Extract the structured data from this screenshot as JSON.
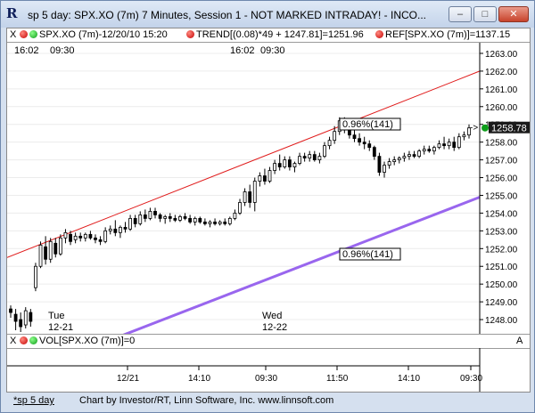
{
  "window": {
    "title": "sp 5 day: SPX.XO (7m) 7 Minutes, Session 1 - NOT MARKED INTRADAY! - INCO...",
    "app_icon": "R",
    "controls": {
      "minimize": "–",
      "maximize": "□",
      "close": "✕"
    }
  },
  "study_bar": {
    "symbol_label": "SPX.XO (7m)-12/20/10 15:20",
    "trend_label": "TREND[(0.08)*49 + 1247.81]=1251.96",
    "ref_label": "REF[SPX.XO (7m)]=1137.15",
    "close_button": "X"
  },
  "session_labels": {
    "left_a": "16:02",
    "left_b": "09:30",
    "mid_a": "16:02",
    "mid_b": "09:30"
  },
  "day_labels": [
    {
      "day": "Tue",
      "date": "12-21"
    },
    {
      "day": "Wed",
      "date": "12-22"
    }
  ],
  "annotations": {
    "upper_pct": "0.96%(141)",
    "lower_pct": "0.96%(141)"
  },
  "last_price": "1258.78",
  "last_price_arrow": "->",
  "volume_bar": {
    "label": "VOL[SPX.XO (7m)]=0",
    "axis_marker": "A"
  },
  "x_axis_labels": [
    "12/21",
    "14:10",
    "09:30",
    "11:50",
    "14:10",
    "09:30"
  ],
  "status": {
    "tab_label": "*sp 5 day",
    "credit": "Chart by Investor/RT, Linn Software, Inc. www.linnsoft.com"
  },
  "colors": {
    "trend_upper": "#e01b1b",
    "trend_lower": "#9966ee",
    "price_tag": "#1a1a1a"
  },
  "chart_data": {
    "type": "candlestick",
    "title": "",
    "ylim": [
      1247.2,
      1263.6
    ],
    "yticks": [
      1248,
      1249,
      1250,
      1251,
      1252,
      1253,
      1254,
      1255,
      1256,
      1257,
      1258,
      1259,
      1260,
      1261,
      1262,
      1263
    ],
    "ytick_labels": [
      "1248.00",
      "1249.00",
      "1250.00",
      "1251.00",
      "1252.00",
      "1253.00",
      "1254.00",
      "1255.00",
      "1256.00",
      "1257.00",
      "1258.00",
      "1259.00",
      "1260.00",
      "1261.00",
      "1262.00",
      "1263.00"
    ],
    "candles": [
      {
        "o": 1248.6,
        "h": 1248.8,
        "l": 1248.1,
        "c": 1248.4
      },
      {
        "o": 1248.3,
        "h": 1248.6,
        "l": 1247.4,
        "c": 1247.9
      },
      {
        "o": 1248.0,
        "h": 1248.4,
        "l": 1247.3,
        "c": 1247.6
      },
      {
        "o": 1247.7,
        "h": 1248.7,
        "l": 1247.5,
        "c": 1248.5
      },
      {
        "o": 1248.4,
        "h": 1248.6,
        "l": 1247.6,
        "c": 1247.9
      },
      {
        "o": 1249.8,
        "h": 1251.2,
        "l": 1249.6,
        "c": 1251.0
      },
      {
        "o": 1251.0,
        "h": 1252.4,
        "l": 1250.9,
        "c": 1252.2
      },
      {
        "o": 1252.1,
        "h": 1252.7,
        "l": 1251.1,
        "c": 1251.4
      },
      {
        "o": 1251.4,
        "h": 1252.6,
        "l": 1251.2,
        "c": 1252.4
      },
      {
        "o": 1252.3,
        "h": 1252.6,
        "l": 1251.5,
        "c": 1251.7
      },
      {
        "o": 1251.7,
        "h": 1252.8,
        "l": 1251.6,
        "c": 1252.6
      },
      {
        "o": 1252.6,
        "h": 1253.1,
        "l": 1252.3,
        "c": 1252.9
      },
      {
        "o": 1252.8,
        "h": 1253.0,
        "l": 1252.2,
        "c": 1252.4
      },
      {
        "o": 1252.5,
        "h": 1252.9,
        "l": 1252.3,
        "c": 1252.7
      },
      {
        "o": 1252.7,
        "h": 1252.9,
        "l": 1252.4,
        "c": 1252.6
      },
      {
        "o": 1252.6,
        "h": 1252.9,
        "l": 1252.4,
        "c": 1252.8
      },
      {
        "o": 1252.8,
        "h": 1253.0,
        "l": 1252.5,
        "c": 1252.6
      },
      {
        "o": 1252.6,
        "h": 1252.8,
        "l": 1252.3,
        "c": 1252.5
      },
      {
        "o": 1252.5,
        "h": 1252.7,
        "l": 1252.2,
        "c": 1252.4
      },
      {
        "o": 1252.4,
        "h": 1253.2,
        "l": 1252.3,
        "c": 1253.0
      },
      {
        "o": 1253.0,
        "h": 1253.3,
        "l": 1252.8,
        "c": 1253.1
      },
      {
        "o": 1253.1,
        "h": 1253.6,
        "l": 1252.7,
        "c": 1252.9
      },
      {
        "o": 1252.9,
        "h": 1253.3,
        "l": 1252.6,
        "c": 1253.2
      },
      {
        "o": 1253.2,
        "h": 1253.5,
        "l": 1252.9,
        "c": 1253.1
      },
      {
        "o": 1253.1,
        "h": 1253.9,
        "l": 1253.0,
        "c": 1253.7
      },
      {
        "o": 1253.7,
        "h": 1253.9,
        "l": 1253.2,
        "c": 1253.4
      },
      {
        "o": 1253.4,
        "h": 1254.1,
        "l": 1253.3,
        "c": 1253.9
      },
      {
        "o": 1253.9,
        "h": 1254.2,
        "l": 1253.5,
        "c": 1253.7
      },
      {
        "o": 1253.7,
        "h": 1254.3,
        "l": 1253.6,
        "c": 1254.1
      },
      {
        "o": 1254.1,
        "h": 1254.3,
        "l": 1253.7,
        "c": 1253.9
      },
      {
        "o": 1253.9,
        "h": 1254.0,
        "l": 1253.5,
        "c": 1253.7
      },
      {
        "o": 1253.7,
        "h": 1253.9,
        "l": 1253.4,
        "c": 1253.8
      },
      {
        "o": 1253.8,
        "h": 1254.0,
        "l": 1253.5,
        "c": 1253.7
      },
      {
        "o": 1253.7,
        "h": 1253.9,
        "l": 1253.5,
        "c": 1253.6
      },
      {
        "o": 1253.6,
        "h": 1253.9,
        "l": 1253.5,
        "c": 1253.8
      },
      {
        "o": 1253.8,
        "h": 1254.0,
        "l": 1253.6,
        "c": 1253.7
      },
      {
        "o": 1253.7,
        "h": 1253.9,
        "l": 1253.4,
        "c": 1253.5
      },
      {
        "o": 1253.5,
        "h": 1253.8,
        "l": 1253.3,
        "c": 1253.7
      },
      {
        "o": 1253.7,
        "h": 1253.8,
        "l": 1253.4,
        "c": 1253.5
      },
      {
        "o": 1253.5,
        "h": 1253.7,
        "l": 1253.3,
        "c": 1253.4
      },
      {
        "o": 1253.4,
        "h": 1253.6,
        "l": 1253.2,
        "c": 1253.5
      },
      {
        "o": 1253.5,
        "h": 1253.7,
        "l": 1253.3,
        "c": 1253.4
      },
      {
        "o": 1253.4,
        "h": 1253.6,
        "l": 1253.3,
        "c": 1253.5
      },
      {
        "o": 1253.5,
        "h": 1253.7,
        "l": 1253.3,
        "c": 1253.4
      },
      {
        "o": 1253.4,
        "h": 1253.8,
        "l": 1253.3,
        "c": 1253.7
      },
      {
        "o": 1253.7,
        "h": 1254.2,
        "l": 1253.6,
        "c": 1254.0
      },
      {
        "o": 1254.0,
        "h": 1254.8,
        "l": 1253.9,
        "c": 1254.6
      },
      {
        "o": 1254.6,
        "h": 1255.4,
        "l": 1254.4,
        "c": 1255.2
      },
      {
        "o": 1255.2,
        "h": 1255.6,
        "l": 1254.3,
        "c": 1254.6
      },
      {
        "o": 1254.6,
        "h": 1256.0,
        "l": 1254.1,
        "c": 1255.8
      },
      {
        "o": 1255.8,
        "h": 1256.3,
        "l": 1255.5,
        "c": 1256.1
      },
      {
        "o": 1256.1,
        "h": 1256.5,
        "l": 1255.6,
        "c": 1255.8
      },
      {
        "o": 1255.8,
        "h": 1256.6,
        "l": 1255.7,
        "c": 1256.4
      },
      {
        "o": 1256.4,
        "h": 1257.0,
        "l": 1256.2,
        "c": 1256.8
      },
      {
        "o": 1256.8,
        "h": 1257.3,
        "l": 1256.4,
        "c": 1256.6
      },
      {
        "o": 1256.6,
        "h": 1257.2,
        "l": 1256.5,
        "c": 1257.0
      },
      {
        "o": 1257.0,
        "h": 1257.2,
        "l": 1256.4,
        "c": 1256.6
      },
      {
        "o": 1256.6,
        "h": 1256.9,
        "l": 1256.3,
        "c": 1256.8
      },
      {
        "o": 1256.8,
        "h": 1257.4,
        "l": 1256.7,
        "c": 1257.2
      },
      {
        "o": 1257.2,
        "h": 1257.4,
        "l": 1256.9,
        "c": 1257.1
      },
      {
        "o": 1257.1,
        "h": 1257.5,
        "l": 1256.9,
        "c": 1257.3
      },
      {
        "o": 1257.3,
        "h": 1257.5,
        "l": 1256.9,
        "c": 1257.0
      },
      {
        "o": 1257.0,
        "h": 1257.4,
        "l": 1256.8,
        "c": 1257.2
      },
      {
        "o": 1257.2,
        "h": 1258.0,
        "l": 1257.1,
        "c": 1257.8
      },
      {
        "o": 1257.8,
        "h": 1258.3,
        "l": 1257.6,
        "c": 1258.1
      },
      {
        "o": 1258.1,
        "h": 1258.9,
        "l": 1257.9,
        "c": 1258.6
      },
      {
        "o": 1258.6,
        "h": 1259.4,
        "l": 1258.4,
        "c": 1259.2
      },
      {
        "o": 1259.2,
        "h": 1259.4,
        "l": 1258.5,
        "c": 1258.7
      },
      {
        "o": 1258.7,
        "h": 1259.0,
        "l": 1258.2,
        "c": 1258.4
      },
      {
        "o": 1258.4,
        "h": 1258.8,
        "l": 1258.0,
        "c": 1258.2
      },
      {
        "o": 1258.2,
        "h": 1258.5,
        "l": 1257.8,
        "c": 1258.0
      },
      {
        "o": 1258.0,
        "h": 1258.3,
        "l": 1257.6,
        "c": 1257.9
      },
      {
        "o": 1257.9,
        "h": 1258.1,
        "l": 1257.5,
        "c": 1257.7
      },
      {
        "o": 1257.7,
        "h": 1257.8,
        "l": 1257.0,
        "c": 1257.2
      },
      {
        "o": 1257.2,
        "h": 1257.4,
        "l": 1256.1,
        "c": 1256.3
      },
      {
        "o": 1256.3,
        "h": 1256.9,
        "l": 1256.0,
        "c": 1256.7
      },
      {
        "o": 1256.7,
        "h": 1257.1,
        "l": 1256.5,
        "c": 1256.9
      },
      {
        "o": 1256.9,
        "h": 1257.2,
        "l": 1256.7,
        "c": 1257.0
      },
      {
        "o": 1257.0,
        "h": 1257.2,
        "l": 1256.8,
        "c": 1257.1
      },
      {
        "o": 1257.1,
        "h": 1257.4,
        "l": 1256.9,
        "c": 1257.2
      },
      {
        "o": 1257.2,
        "h": 1257.5,
        "l": 1257.0,
        "c": 1257.3
      },
      {
        "o": 1257.3,
        "h": 1257.5,
        "l": 1257.1,
        "c": 1257.2
      },
      {
        "o": 1257.2,
        "h": 1257.6,
        "l": 1257.1,
        "c": 1257.5
      },
      {
        "o": 1257.5,
        "h": 1257.8,
        "l": 1257.3,
        "c": 1257.6
      },
      {
        "o": 1257.6,
        "h": 1257.8,
        "l": 1257.4,
        "c": 1257.5
      },
      {
        "o": 1257.5,
        "h": 1257.8,
        "l": 1257.3,
        "c": 1257.7
      },
      {
        "o": 1257.7,
        "h": 1258.1,
        "l": 1257.6,
        "c": 1257.9
      },
      {
        "o": 1257.9,
        "h": 1258.3,
        "l": 1257.6,
        "c": 1257.8
      },
      {
        "o": 1257.8,
        "h": 1258.2,
        "l": 1257.6,
        "c": 1258.0
      },
      {
        "o": 1258.0,
        "h": 1258.3,
        "l": 1257.5,
        "c": 1257.7
      },
      {
        "o": 1257.7,
        "h": 1258.5,
        "l": 1257.6,
        "c": 1258.3
      },
      {
        "o": 1258.3,
        "h": 1258.6,
        "l": 1258.1,
        "c": 1258.4
      },
      {
        "o": 1258.4,
        "h": 1259.0,
        "l": 1258.2,
        "c": 1258.8
      }
    ],
    "trend_upper": {
      "y_start": 1251.5,
      "y_end": 1262.0
    },
    "trend_lower": {
      "y_start": 1244.6,
      "y_end": 1254.9
    }
  }
}
